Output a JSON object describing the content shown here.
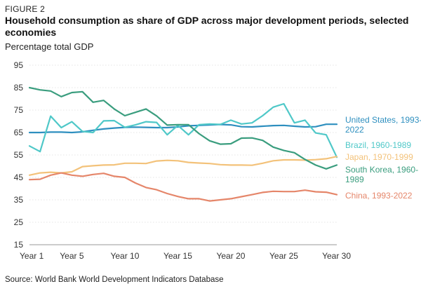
{
  "figure_label": "FIGURE 2",
  "title": "Household consumption as share of GDP across major development periods, selected economies",
  "subtitle": "Percentage total GDP",
  "source": "Source: World Bank World Development Indicators Database",
  "chart_data": {
    "type": "line",
    "x": [
      1,
      2,
      3,
      4,
      5,
      6,
      7,
      8,
      9,
      10,
      11,
      12,
      13,
      14,
      15,
      16,
      17,
      18,
      19,
      20,
      21,
      22,
      23,
      24,
      25,
      26,
      27,
      28,
      29,
      30
    ],
    "xticks": [
      1,
      5,
      10,
      15,
      20,
      25,
      30
    ],
    "xtick_labels": [
      "Year 1",
      "Year 5",
      "Year 10",
      "Year 15",
      "Year 20",
      "Year 25",
      "Year 30"
    ],
    "yticks": [
      15,
      25,
      35,
      45,
      55,
      65,
      75,
      85,
      95
    ],
    "ylim": [
      15,
      95
    ],
    "xlim": [
      1,
      30
    ],
    "series": [
      {
        "name": "United States, 1993-2022",
        "label_lines": [
          "United States, 1993-",
          "2022"
        ],
        "color": "#2e8fbf",
        "values": [
          65,
          65,
          65.2,
          65.2,
          65,
          65.3,
          66,
          66.6,
          67,
          67.3,
          67.4,
          67.3,
          67.2,
          67.2,
          67.5,
          68,
          68.2,
          68.4,
          68.6,
          68.4,
          67.6,
          67.5,
          67.8,
          68.1,
          68.2,
          67.8,
          67.5,
          67.6,
          68.7,
          68.7
        ]
      },
      {
        "name": "Brazil, 1960-1989",
        "label_lines": [
          "Brazil, 1960-1989"
        ],
        "color": "#4fc8c8",
        "values": [
          59,
          56.5,
          72.3,
          67.2,
          69.8,
          65.5,
          65,
          70.2,
          70.3,
          67.3,
          68.4,
          69.8,
          69.5,
          64,
          68.2,
          64,
          68.5,
          68.8,
          68.6,
          70.5,
          68.8,
          69.3,
          72.5,
          76.3,
          77.8,
          69.3,
          70.5,
          64.8,
          64,
          54
        ]
      },
      {
        "name": "Japan, 1970-1999",
        "label_lines": [
          "Japan, 1970-1999"
        ],
        "color": "#f3c27a",
        "values": [
          46,
          47,
          47.3,
          47,
          47.5,
          49.8,
          50.2,
          50.5,
          50.6,
          51.3,
          51.3,
          51.2,
          52.3,
          52.6,
          52.4,
          51.7,
          51.4,
          51.2,
          50.7,
          50.5,
          50.5,
          50.4,
          51.3,
          52.4,
          52.8,
          52.8,
          52.7,
          52.9,
          53.3,
          54.3
        ]
      },
      {
        "name": "South Korea, 1960-1989",
        "label_lines": [
          "South Korea, 1960-",
          "1989"
        ],
        "color": "#3a9d7e",
        "values": [
          85,
          84,
          83.5,
          81,
          82.8,
          83.2,
          78.5,
          79.3,
          75.5,
          72.5,
          74,
          75.5,
          72.4,
          68.3,
          68.5,
          68.5,
          64.5,
          61.3,
          59.8,
          60,
          62.5,
          62.6,
          61.5,
          58.5,
          57,
          56,
          53,
          50.5,
          48.8,
          50.5
        ]
      },
      {
        "name": "China, 1993-2022",
        "label_lines": [
          "China, 1993-2022"
        ],
        "color": "#e5866a",
        "values": [
          44,
          44.2,
          46,
          47,
          46,
          45.5,
          46.3,
          46.8,
          45.5,
          45,
          42.5,
          40.5,
          39.5,
          37.8,
          36.5,
          35.5,
          35.5,
          34.5,
          35,
          35.5,
          36.4,
          37.3,
          38.3,
          38.8,
          38.7,
          38.7,
          39.3,
          38.6,
          38.4,
          37.3
        ]
      }
    ]
  }
}
